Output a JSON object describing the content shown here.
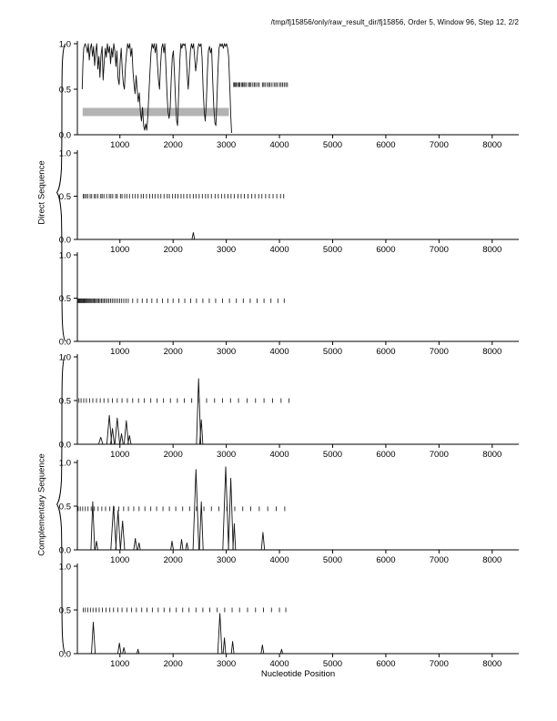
{
  "header": {
    "title": "/tmp/fj15856/only/raw_result_dir/fj15856, Order 5, Window 96, Step 12, 2/2"
  },
  "labels": {
    "direct": "Direct Sequence",
    "complementary": "Complementary Sequence",
    "x_axis": "Nucleotide Position"
  },
  "chart_data": {
    "type": "line",
    "title": "/tmp/fj15856/only/raw_result_dir/fj15856, Order 5, Window 96, Step 12, 2/2",
    "xlabel": "Nucleotide Position",
    "ylabel_groups": [
      "Direct Sequence",
      "Complementary Sequence"
    ],
    "x_range": [
      200,
      8500
    ],
    "y_range": [
      0,
      1
    ],
    "x_ticks": [
      1000,
      2000,
      3000,
      4000,
      5000,
      6000,
      7000,
      8000
    ],
    "y_ticks": [
      {
        "v": 0.0,
        "label": "0.0"
      },
      {
        "v": 0.5,
        "label": "0.5"
      },
      {
        "v": 1.0,
        "label": "1.0"
      }
    ],
    "bar_color": "#b3b3b3",
    "panels": [
      {
        "name": "direct-frame-1",
        "group": "direct",
        "curve": [
          [
            290,
            0.5
          ],
          [
            305,
            0.78
          ],
          [
            320,
            0.95
          ],
          [
            345,
            1.0
          ],
          [
            370,
            0.96
          ],
          [
            390,
            0.9
          ],
          [
            405,
            1.0
          ],
          [
            425,
            0.82
          ],
          [
            445,
            0.95
          ],
          [
            465,
            1.0
          ],
          [
            485,
            0.86
          ],
          [
            505,
            0.97
          ],
          [
            525,
            0.76
          ],
          [
            545,
            0.92
          ],
          [
            565,
            1.0
          ],
          [
            585,
            0.72
          ],
          [
            605,
            0.86
          ],
          [
            625,
            0.63
          ],
          [
            645,
            0.88
          ],
          [
            665,
            0.97
          ],
          [
            685,
            0.6
          ],
          [
            705,
            0.8
          ],
          [
            725,
            0.95
          ],
          [
            745,
            0.85
          ],
          [
            765,
            1.0
          ],
          [
            785,
            0.9
          ],
          [
            805,
            0.97
          ],
          [
            825,
            0.78
          ],
          [
            845,
            0.95
          ],
          [
            865,
            0.85
          ],
          [
            885,
            1.0
          ],
          [
            905,
            0.92
          ],
          [
            925,
            0.75
          ],
          [
            945,
            0.92
          ],
          [
            965,
            0.62
          ],
          [
            985,
            0.55
          ],
          [
            1005,
            0.8
          ],
          [
            1025,
            0.95
          ],
          [
            1045,
            0.7
          ],
          [
            1065,
            0.56
          ],
          [
            1085,
            0.5
          ],
          [
            1105,
            0.76
          ],
          [
            1125,
            0.9
          ],
          [
            1145,
            1.0
          ],
          [
            1165,
            0.95
          ],
          [
            1185,
            1.0
          ],
          [
            1205,
            0.86
          ],
          [
            1225,
            0.95
          ],
          [
            1245,
            0.7
          ],
          [
            1265,
            0.56
          ],
          [
            1285,
            0.45
          ],
          [
            1305,
            0.65
          ],
          [
            1325,
            0.5
          ],
          [
            1345,
            0.36
          ],
          [
            1365,
            0.46
          ],
          [
            1385,
            0.26
          ],
          [
            1405,
            0.15
          ],
          [
            1425,
            0.3
          ],
          [
            1445,
            0.1
          ],
          [
            1465,
            0.05
          ],
          [
            1485,
            0.12
          ],
          [
            1505,
            0.05
          ],
          [
            1525,
            0.2
          ],
          [
            1545,
            0.45
          ],
          [
            1565,
            0.7
          ],
          [
            1585,
            0.9
          ],
          [
            1605,
            1.0
          ],
          [
            1625,
            0.95
          ],
          [
            1645,
            1.0
          ],
          [
            1665,
            0.9
          ],
          [
            1685,
            1.0
          ],
          [
            1705,
            0.8
          ],
          [
            1725,
            0.6
          ],
          [
            1745,
            0.5
          ],
          [
            1765,
            0.76
          ],
          [
            1785,
            0.95
          ],
          [
            1805,
            1.0
          ],
          [
            1825,
            0.9
          ],
          [
            1845,
            1.0
          ],
          [
            1865,
            0.75
          ],
          [
            1885,
            0.45
          ],
          [
            1905,
            0.25
          ],
          [
            1925,
            0.18
          ],
          [
            1945,
            0.3
          ],
          [
            1965,
            0.6
          ],
          [
            1985,
            0.85
          ],
          [
            2005,
            0.92
          ],
          [
            2025,
            0.7
          ],
          [
            2045,
            0.4
          ],
          [
            2065,
            0.16
          ],
          [
            2085,
            0.1
          ],
          [
            2105,
            0.45
          ],
          [
            2125,
            0.8
          ],
          [
            2145,
            1.0
          ],
          [
            2165,
            0.95
          ],
          [
            2185,
            1.0
          ],
          [
            2205,
            0.98
          ],
          [
            2225,
            1.0
          ],
          [
            2245,
            0.9
          ],
          [
            2265,
            0.66
          ],
          [
            2285,
            0.5
          ],
          [
            2305,
            0.7
          ],
          [
            2325,
            0.92
          ],
          [
            2345,
            1.0
          ],
          [
            2365,
            0.95
          ],
          [
            2385,
            1.0
          ],
          [
            2405,
            0.86
          ],
          [
            2425,
            0.7
          ],
          [
            2445,
            0.8
          ],
          [
            2465,
            0.95
          ],
          [
            2485,
            1.0
          ],
          [
            2505,
            0.97
          ],
          [
            2525,
            1.0
          ],
          [
            2545,
            0.85
          ],
          [
            2565,
            0.5
          ],
          [
            2585,
            0.26
          ],
          [
            2605,
            0.15
          ],
          [
            2625,
            0.35
          ],
          [
            2645,
            0.7
          ],
          [
            2665,
            0.92
          ],
          [
            2685,
            0.97
          ],
          [
            2705,
            0.9
          ],
          [
            2725,
            0.95
          ],
          [
            2745,
            0.6
          ],
          [
            2765,
            0.3
          ],
          [
            2785,
            0.13
          ],
          [
            2805,
            0.1
          ],
          [
            2825,
            0.4
          ],
          [
            2845,
            0.75
          ],
          [
            2865,
            0.95
          ],
          [
            2885,
            1.0
          ],
          [
            2905,
            0.97
          ],
          [
            2925,
            1.0
          ],
          [
            2945,
            0.95
          ],
          [
            2965,
            1.0
          ],
          [
            2985,
            0.97
          ],
          [
            3005,
            1.0
          ],
          [
            3025,
            0.95
          ],
          [
            3045,
            0.86
          ],
          [
            3065,
            0.55
          ],
          [
            3085,
            0.2
          ],
          [
            3100,
            0.02
          ]
        ],
        "bar": {
          "x1": 300,
          "x2": 3050,
          "y": 0.25,
          "h": 0.09
        },
        "marks": {
          "y": 0.55,
          "x": [
            3140,
            3155,
            3175,
            3190,
            3215,
            3240,
            3255,
            3285,
            3305,
            3330,
            3350,
            3380,
            3420,
            3440,
            3465,
            3500,
            3530,
            3555,
            3590,
            3620,
            3680,
            3705,
            3730,
            3770,
            3800,
            3825,
            3860,
            3900,
            3930,
            3960,
            4000,
            4030,
            4060,
            4090,
            4120,
            4150
          ]
        },
        "spikes": []
      },
      {
        "name": "direct-frame-2",
        "group": "direct",
        "curve": null,
        "bar": null,
        "marks": {
          "y": 0.5,
          "x": [
            310,
            335,
            365,
            395,
            440,
            470,
            520,
            545,
            585,
            640,
            665,
            700,
            750,
            800,
            830,
            865,
            920,
            950,
            1010,
            1040,
            1090,
            1130,
            1180,
            1240,
            1290,
            1340,
            1400,
            1440,
            1500,
            1560,
            1610,
            1660,
            1720,
            1770,
            1830,
            1890,
            1930,
            1990,
            2040,
            2090,
            2150,
            2200,
            2260,
            2320,
            2380,
            2430,
            2490,
            2550,
            2610,
            2660,
            2720,
            2790,
            2850,
            2910,
            2970,
            3030,
            3090,
            3150,
            3220,
            3280,
            3340,
            3410,
            3480,
            3540,
            3610,
            3670,
            3740,
            3810,
            3880,
            3950,
            4020,
            4080
          ]
        },
        "spikes": [
          [
            2380,
            0.08,
            25
          ]
        ]
      },
      {
        "name": "direct-frame-3",
        "group": "direct",
        "curve": null,
        "bar": null,
        "marks": {
          "y": 0.47,
          "x": [
            210,
            222,
            235,
            248,
            262,
            276,
            290,
            305,
            320,
            336,
            352,
            368,
            385,
            402,
            420,
            438,
            457,
            476,
            496,
            516,
            537,
            558,
            580,
            603,
            627,
            652,
            678,
            705,
            733,
            762,
            792,
            823,
            855,
            888,
            922,
            958,
            995,
            1033,
            1073,
            1114,
            1157,
            1240,
            1330,
            1420,
            1510,
            1600,
            1700,
            1800,
            1900,
            2000,
            2110,
            2220,
            2330,
            2440,
            2560,
            2680,
            2800,
            2930,
            3060,
            3190,
            3320,
            3450,
            3580,
            3710,
            3840,
            3970,
            4090
          ]
        },
        "spikes": []
      },
      {
        "name": "complementary-frame-1",
        "group": "complementary",
        "curve": null,
        "bar": null,
        "marks": {
          "y": 0.5,
          "x": [
            230,
            270,
            320,
            370,
            430,
            490,
            560,
            630,
            700,
            780,
            860,
            950,
            1040,
            1140,
            1240,
            1350,
            1460,
            1580,
            1700,
            1820,
            1950,
            2080,
            2210,
            2350,
            2490,
            2630,
            2780,
            2930,
            3080,
            3230,
            3390,
            3550,
            3710,
            3870,
            4030,
            4180
          ]
        },
        "spikes": [
          [
            640,
            0.08,
            40
          ],
          [
            800,
            0.33,
            45
          ],
          [
            860,
            0.18,
            35
          ],
          [
            950,
            0.3,
            45
          ],
          [
            1030,
            0.12,
            30
          ],
          [
            1120,
            0.27,
            40
          ],
          [
            1180,
            0.1,
            30
          ],
          [
            2480,
            0.75,
            40
          ],
          [
            2530,
            0.28,
            30
          ]
        ]
      },
      {
        "name": "complementary-frame-2",
        "group": "complementary",
        "curve": null,
        "bar": null,
        "marks": {
          "y": 0.47,
          "x": [
            215,
            255,
            300,
            350,
            400,
            460,
            520,
            590,
            660,
            730,
            810,
            890,
            980,
            1070,
            1160,
            1260,
            1360,
            1470,
            1580,
            1690,
            1810,
            1930,
            2050,
            2180,
            2310,
            2440,
            2580,
            2720,
            2860,
            3010,
            3160,
            3310,
            3460,
            3620,
            3780,
            3940,
            4100
          ]
        },
        "spikes": [
          [
            490,
            0.55,
            35
          ],
          [
            560,
            0.1,
            25
          ],
          [
            880,
            0.5,
            50
          ],
          [
            965,
            0.45,
            45
          ],
          [
            1050,
            0.33,
            40
          ],
          [
            1290,
            0.13,
            30
          ],
          [
            1360,
            0.08,
            25
          ],
          [
            1980,
            0.1,
            25
          ],
          [
            2160,
            0.12,
            25
          ],
          [
            2260,
            0.08,
            25
          ],
          [
            2430,
            0.92,
            55
          ],
          [
            2530,
            0.55,
            35
          ],
          [
            2990,
            0.95,
            55
          ],
          [
            3085,
            0.82,
            45
          ],
          [
            3150,
            0.3,
            25
          ],
          [
            3690,
            0.2,
            30
          ]
        ]
      },
      {
        "name": "complementary-frame-3",
        "group": "complementary",
        "curve": null,
        "bar": null,
        "marks": {
          "y": 0.5,
          "x": [
            310,
            350,
            395,
            445,
            495,
            550,
            610,
            670,
            740,
            810,
            880,
            960,
            1040,
            1130,
            1220,
            1310,
            1410,
            1510,
            1610,
            1720,
            1830,
            1940,
            2060,
            2180,
            2300,
            2430,
            2560,
            2690,
            2830,
            2970,
            3110,
            3250,
            3400,
            3550,
            3700,
            3850,
            4000,
            4120
          ]
        },
        "spikes": [
          [
            500,
            0.36,
            35
          ],
          [
            990,
            0.12,
            30
          ],
          [
            1075,
            0.07,
            25
          ],
          [
            1340,
            0.05,
            20
          ],
          [
            2880,
            0.46,
            40
          ],
          [
            2965,
            0.18,
            25
          ],
          [
            3120,
            0.14,
            25
          ],
          [
            3680,
            0.1,
            25
          ],
          [
            4040,
            0.05,
            20
          ]
        ]
      }
    ]
  }
}
